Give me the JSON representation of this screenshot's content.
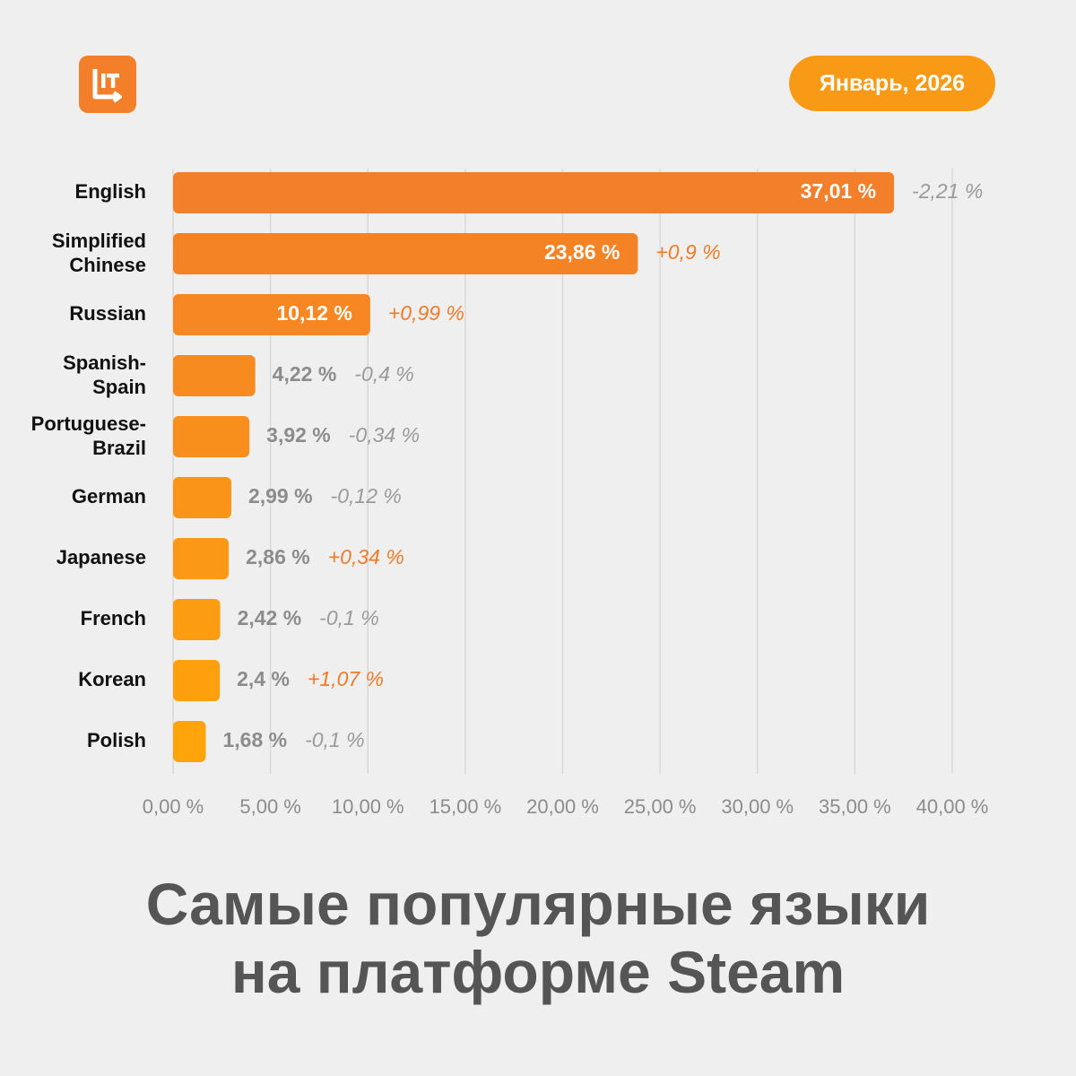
{
  "logo": {
    "icon": "lit-logo-icon",
    "text": "LIT",
    "color": "#f37f2a"
  },
  "period": "Январь, 2026",
  "title_lines": [
    "Самые популярные языки",
    "на платформе Steam"
  ],
  "colors": {
    "background": "#efefef",
    "bar_top": "#f37f2a",
    "bar_bottom": "#ffa40a",
    "positive_change": "#f07a28",
    "negative_change": "#9a9a9a",
    "value_outside": "#8c8c8c",
    "value_inside": "#ffffff",
    "grid": "#d9d9d9",
    "category_label": "#111111"
  },
  "chart_data": {
    "type": "bar",
    "orientation": "horizontal",
    "categories": [
      [
        "English"
      ],
      [
        "Simplified",
        "Chinese"
      ],
      [
        "Russian"
      ],
      [
        "Spanish-",
        "Spain"
      ],
      [
        "Portuguese-",
        "Brazil"
      ],
      [
        "German"
      ],
      [
        "Japanese"
      ],
      [
        "French"
      ],
      [
        "Korean"
      ],
      [
        "Polish"
      ]
    ],
    "values": [
      37.01,
      23.86,
      10.12,
      4.22,
      3.92,
      2.99,
      2.86,
      2.42,
      2.4,
      1.68
    ],
    "value_labels": [
      "37,01 %",
      "23,86 %",
      "10,12 %",
      "4,22 %",
      "3,92 %",
      "2,99 %",
      "2,86 %",
      "2,42 %",
      "2,4 %",
      "1,68 %"
    ],
    "changes": [
      -2.21,
      0.9,
      0.99,
      -0.4,
      -0.34,
      -0.12,
      0.34,
      -0.1,
      1.07,
      -0.1
    ],
    "change_labels": [
      "-2,21 %",
      "+0,9 %",
      "+0,99 %",
      "-0,4 %",
      "-0,34 %",
      "-0,12 %",
      "+0,34 %",
      "-0,1 %",
      "+1,07 %",
      "-0,1 %"
    ],
    "xlim": [
      0,
      40
    ],
    "x_ticks": [
      0,
      5,
      10,
      15,
      20,
      25,
      30,
      35,
      40
    ],
    "x_tick_labels": [
      "0,00 %",
      "5,00 %",
      "10,00 %",
      "15,00 %",
      "20,00 %",
      "25,00 %",
      "30,00 %",
      "35,00 %",
      "40,00 %"
    ],
    "grid": true,
    "legend": "none"
  }
}
